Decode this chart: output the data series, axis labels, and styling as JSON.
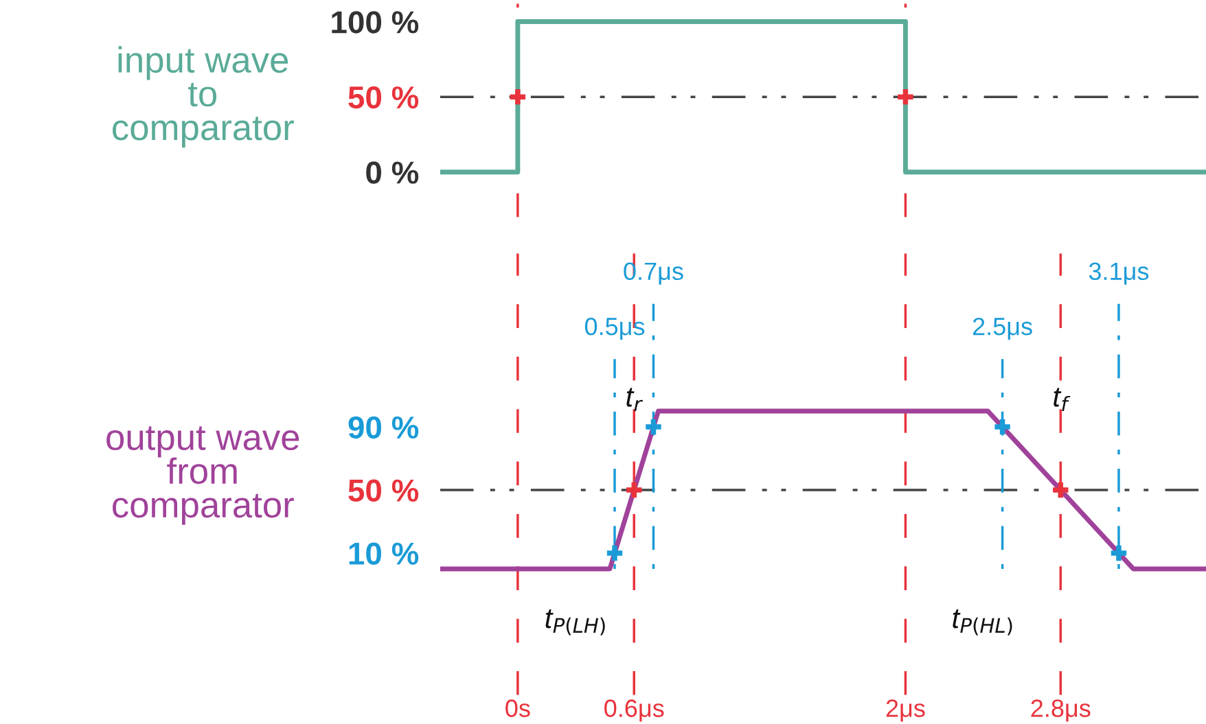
{
  "chart_data": [
    {
      "type": "line",
      "ylabel": "input wave\nto\ncomparator",
      "xlim": [
        -0.4,
        3.55
      ],
      "ylim": [
        -30,
        112
      ],
      "tick_labels": "y",
      "yticks": [
        {
          "value": 100,
          "label": "100 %"
        },
        {
          "value": 50,
          "label": "50 %"
        },
        {
          "value": 0,
          "label": "0 %"
        }
      ],
      "series": [
        {
          "color": "#5aab98",
          "x": [
            -0.4,
            0,
            0,
            2,
            2,
            3.55
          ],
          "values": [
            0,
            0,
            100,
            100,
            0,
            0
          ]
        },
        {
          "type": "scatter",
          "marker": "cross",
          "color": "#e8333c",
          "x": [
            0,
            2
          ],
          "values": [
            50,
            50
          ]
        }
      ],
      "ref_lines": [
        {
          "axis": "y",
          "value": 50,
          "color": "#444444",
          "line_style": "dashed"
        },
        {
          "axis": "x",
          "value": 0,
          "color": "#e8333c",
          "line_style": "dashed"
        },
        {
          "axis": "x",
          "value": 2,
          "color": "#e8333c",
          "line_style": "dashed"
        }
      ]
    },
    {
      "type": "line",
      "ylabel": "output wave\nfrom\ncomparator",
      "xlim": [
        -0.4,
        3.55
      ],
      "ylim": [
        -80,
        200
      ],
      "xticks": [
        {
          "value": 0,
          "label": "0s"
        },
        {
          "value": 0.6,
          "label": "0.6μs"
        },
        {
          "value": 2,
          "label": "2μs"
        },
        {
          "value": 2.8,
          "label": "2.8μs"
        }
      ],
      "yticks": [
        {
          "value": 90,
          "label": "90 %"
        },
        {
          "value": 50,
          "label": "50 %"
        },
        {
          "value": 10,
          "label": "10 %"
        }
      ],
      "series": [
        {
          "color": "#a0429a",
          "x": [
            -0.4,
            0.475,
            0.725,
            2.425,
            3.175,
            3.55
          ],
          "values": [
            0,
            0,
            100,
            100,
            0,
            0
          ]
        },
        {
          "type": "scatter",
          "marker": "cross",
          "color": "#1a9bd7",
          "x": [
            0.5,
            0.7,
            2.5,
            3.1
          ],
          "values": [
            10,
            90,
            90,
            10
          ]
        },
        {
          "type": "scatter",
          "marker": "cross",
          "color": "#e8333c",
          "x": [
            0.6,
            2.8
          ],
          "values": [
            50,
            50
          ]
        }
      ],
      "ref_lines": [
        {
          "axis": "y",
          "value": 50,
          "color": "#444444",
          "line_style": "dashed"
        },
        {
          "axis": "x",
          "value": 0,
          "color": "#e8333c",
          "line_style": "dashed"
        },
        {
          "axis": "x",
          "value": 0.6,
          "color": "#e8333c",
          "line_style": "dashed"
        },
        {
          "axis": "x",
          "value": 2,
          "color": "#e8333c",
          "line_style": "dashed"
        },
        {
          "axis": "x",
          "value": 2.8,
          "color": "#e8333c",
          "line_style": "dashed"
        },
        {
          "axis": "x",
          "value": 0.5,
          "label": "0.5μs",
          "color": "#1a9bd7",
          "line_style": "dotted"
        },
        {
          "axis": "x",
          "value": 0.7,
          "label": "0.7μs",
          "color": "#1a9bd7",
          "line_style": "dotted"
        },
        {
          "axis": "x",
          "value": 2.5,
          "label": "2.5μs",
          "color": "#1a9bd7",
          "line_style": "dotted"
        },
        {
          "axis": "x",
          "value": 3.1,
          "label": "3.1μs",
          "color": "#1a9bd7",
          "line_style": "dotted"
        }
      ],
      "annotations": [
        "t$_{r}$",
        "t$_{f}$",
        "t$_{P(LH)}$",
        "t$_{P(HL)}$"
      ]
    }
  ]
}
